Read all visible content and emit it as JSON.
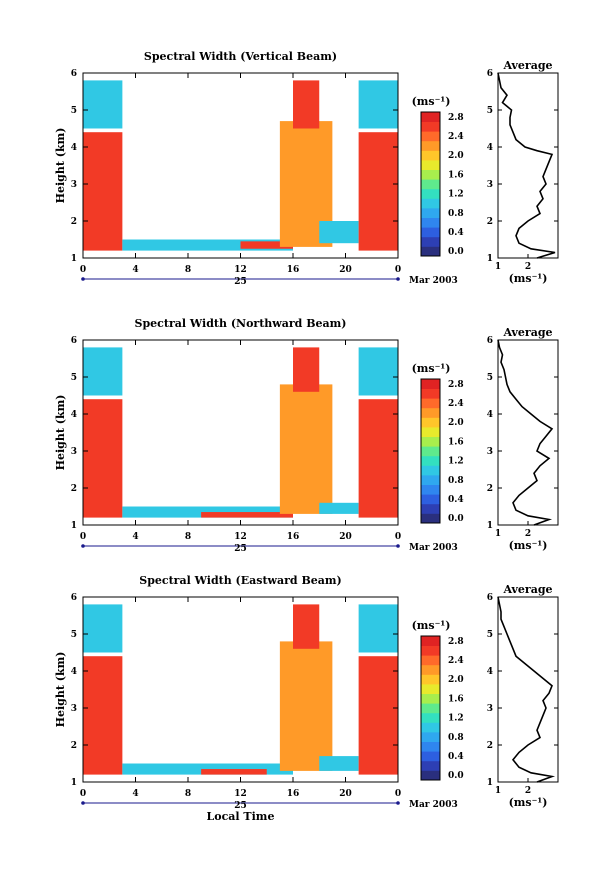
{
  "figure": {
    "x_axis_title": "Local Time",
    "day_label": "25",
    "month_label": "Mar 2003",
    "colorbar_unit": "(ms⁻¹)",
    "average_title": "Average",
    "average_xlabel": "(ms⁻¹)"
  },
  "chart_data": [
    {
      "type": "heatmap",
      "title": "Spectral Width (Vertical Beam)",
      "xlabel": "",
      "ylabel": "Height (km)",
      "x_ticks": [
        "0",
        "4",
        "8",
        "12",
        "16",
        "20",
        "0"
      ],
      "x_range_hours": [
        0,
        24
      ],
      "ylim": [
        1,
        6
      ],
      "y_ticks": [
        "1",
        "2",
        "3",
        "4",
        "5",
        "6"
      ],
      "colorbar_ticks": [
        "0.0",
        "0.4",
        "0.8",
        "1.2",
        "1.6",
        "2.0",
        "2.4",
        "2.8"
      ],
      "colorbar_range": [
        0,
        3.0
      ],
      "regions": [
        {
          "t0": 0,
          "t1": 3,
          "h0": 4.5,
          "h1": 5.8,
          "v": 1.0
        },
        {
          "t0": 0,
          "t1": 3,
          "h0": 1.2,
          "h1": 4.4,
          "v": 2.8
        },
        {
          "t0": 3,
          "t1": 16,
          "h0": 1.2,
          "h1": 1.5,
          "v": 1.0
        },
        {
          "t0": 12,
          "t1": 16,
          "h0": 1.25,
          "h1": 1.45,
          "v": 2.6
        },
        {
          "t0": 15,
          "t1": 19,
          "h0": 1.3,
          "h1": 4.7,
          "v": 2.4
        },
        {
          "t0": 16,
          "t1": 18,
          "h0": 4.5,
          "h1": 5.8,
          "v": 2.8
        },
        {
          "t0": 18,
          "t1": 21,
          "h0": 1.4,
          "h1": 2.0,
          "v": 1.0
        },
        {
          "t0": 21,
          "t1": 24,
          "h0": 4.5,
          "h1": 5.8,
          "v": 1.0
        },
        {
          "t0": 21,
          "t1": 24,
          "h0": 1.2,
          "h1": 4.4,
          "v": 2.8
        }
      ],
      "average": {
        "xlim": [
          1,
          3
        ],
        "x_ticks": [
          "1",
          "2"
        ],
        "y_ticks": [
          "1",
          "2",
          "3",
          "4",
          "5",
          "6"
        ],
        "height_km": [
          1.0,
          1.15,
          1.25,
          1.4,
          1.6,
          1.8,
          2.0,
          2.2,
          2.4,
          2.6,
          2.8,
          3.0,
          3.2,
          3.4,
          3.6,
          3.8,
          3.9,
          4.0,
          4.2,
          4.4,
          4.6,
          4.8,
          5.0,
          5.2,
          5.4,
          5.6,
          5.8,
          6.0
        ],
        "width_ms": [
          2.3,
          2.9,
          2.1,
          1.7,
          1.6,
          1.7,
          2.0,
          2.4,
          2.3,
          2.5,
          2.4,
          2.6,
          2.5,
          2.6,
          2.7,
          2.8,
          2.3,
          1.9,
          1.6,
          1.5,
          1.4,
          1.4,
          1.45,
          1.15,
          1.3,
          1.1,
          1.05,
          1.0
        ]
      }
    },
    {
      "type": "heatmap",
      "title": "Spectral Width (Northward Beam)",
      "xlabel": "",
      "ylabel": "Height (km)",
      "x_ticks": [
        "0",
        "4",
        "8",
        "12",
        "16",
        "20",
        "0"
      ],
      "x_range_hours": [
        0,
        24
      ],
      "ylim": [
        1,
        6
      ],
      "y_ticks": [
        "1",
        "2",
        "3",
        "4",
        "5",
        "6"
      ],
      "colorbar_ticks": [
        "0.0",
        "0.4",
        "0.8",
        "1.2",
        "1.6",
        "2.0",
        "2.4",
        "2.8"
      ],
      "colorbar_range": [
        0,
        3.0
      ],
      "regions": [
        {
          "t0": 0,
          "t1": 3,
          "h0": 4.5,
          "h1": 5.8,
          "v": 1.2
        },
        {
          "t0": 0,
          "t1": 3,
          "h0": 1.2,
          "h1": 4.4,
          "v": 2.8
        },
        {
          "t0": 3,
          "t1": 16,
          "h0": 1.2,
          "h1": 1.5,
          "v": 1.0
        },
        {
          "t0": 9,
          "t1": 16,
          "h0": 1.2,
          "h1": 1.35,
          "v": 2.6
        },
        {
          "t0": 15,
          "t1": 19,
          "h0": 1.3,
          "h1": 4.8,
          "v": 2.4
        },
        {
          "t0": 16,
          "t1": 18,
          "h0": 4.6,
          "h1": 5.8,
          "v": 2.8
        },
        {
          "t0": 18,
          "t1": 21,
          "h0": 1.3,
          "h1": 1.6,
          "v": 1.0
        },
        {
          "t0": 21,
          "t1": 24,
          "h0": 4.5,
          "h1": 5.8,
          "v": 1.0
        },
        {
          "t0": 21,
          "t1": 24,
          "h0": 1.2,
          "h1": 4.4,
          "v": 2.8
        }
      ],
      "average": {
        "xlim": [
          1,
          3
        ],
        "x_ticks": [
          "1",
          "2"
        ],
        "y_ticks": [
          "1",
          "2",
          "3",
          "4",
          "5",
          "6"
        ],
        "height_km": [
          1.0,
          1.15,
          1.25,
          1.4,
          1.6,
          1.8,
          2.0,
          2.2,
          2.4,
          2.6,
          2.8,
          3.0,
          3.2,
          3.4,
          3.6,
          3.8,
          4.0,
          4.2,
          4.4,
          4.6,
          4.8,
          5.0,
          5.2,
          5.4,
          5.6,
          5.8,
          6.0
        ],
        "width_ms": [
          2.2,
          2.7,
          2.0,
          1.6,
          1.5,
          1.7,
          2.0,
          2.3,
          2.2,
          2.4,
          2.7,
          2.3,
          2.4,
          2.6,
          2.8,
          2.4,
          2.1,
          1.8,
          1.6,
          1.4,
          1.3,
          1.25,
          1.2,
          1.1,
          1.15,
          1.05,
          1.0
        ]
      }
    },
    {
      "type": "heatmap",
      "title": "Spectral Width (Eastward Beam)",
      "xlabel": "Local Time",
      "ylabel": "Height (km)",
      "x_ticks": [
        "0",
        "4",
        "8",
        "12",
        "16",
        "20",
        "0"
      ],
      "x_range_hours": [
        0,
        24
      ],
      "ylim": [
        1,
        6
      ],
      "y_ticks": [
        "1",
        "2",
        "3",
        "4",
        "5",
        "6"
      ],
      "colorbar_ticks": [
        "0.0",
        "0.4",
        "0.8",
        "1.2",
        "1.6",
        "2.0",
        "2.4",
        "2.8"
      ],
      "colorbar_range": [
        0,
        3.0
      ],
      "regions": [
        {
          "t0": 0,
          "t1": 3,
          "h0": 4.5,
          "h1": 5.8,
          "v": 1.1
        },
        {
          "t0": 0,
          "t1": 3,
          "h0": 1.2,
          "h1": 4.4,
          "v": 2.8
        },
        {
          "t0": 3,
          "t1": 16,
          "h0": 1.2,
          "h1": 1.5,
          "v": 1.0
        },
        {
          "t0": 9,
          "t1": 14,
          "h0": 1.2,
          "h1": 1.35,
          "v": 2.6
        },
        {
          "t0": 15,
          "t1": 19,
          "h0": 1.3,
          "h1": 4.8,
          "v": 2.4
        },
        {
          "t0": 16,
          "t1": 18,
          "h0": 4.6,
          "h1": 5.8,
          "v": 2.8
        },
        {
          "t0": 18,
          "t1": 21,
          "h0": 1.3,
          "h1": 1.7,
          "v": 1.0
        },
        {
          "t0": 21,
          "t1": 24,
          "h0": 4.5,
          "h1": 5.8,
          "v": 1.0
        },
        {
          "t0": 21,
          "t1": 24,
          "h0": 1.2,
          "h1": 4.4,
          "v": 2.8
        }
      ],
      "average": {
        "xlim": [
          1,
          3
        ],
        "x_ticks": [
          "1",
          "2"
        ],
        "y_ticks": [
          "1",
          "2",
          "3",
          "4",
          "5",
          "6"
        ],
        "height_km": [
          1.0,
          1.15,
          1.25,
          1.4,
          1.6,
          1.8,
          2.0,
          2.2,
          2.4,
          2.6,
          2.8,
          3.0,
          3.2,
          3.4,
          3.6,
          3.8,
          4.0,
          4.2,
          4.4,
          4.6,
          4.8,
          5.0,
          5.2,
          5.4,
          5.6,
          5.8,
          6.0
        ],
        "width_ms": [
          2.3,
          2.8,
          2.1,
          1.7,
          1.5,
          1.7,
          2.0,
          2.4,
          2.3,
          2.4,
          2.5,
          2.6,
          2.5,
          2.7,
          2.8,
          2.5,
          2.2,
          1.9,
          1.6,
          1.5,
          1.4,
          1.3,
          1.2,
          1.1,
          1.1,
          1.05,
          1.0
        ]
      }
    }
  ]
}
